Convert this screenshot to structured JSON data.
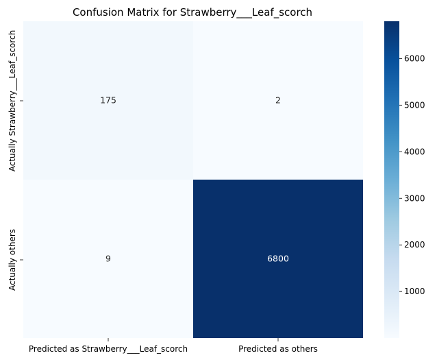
{
  "chart_data": {
    "type": "heatmap",
    "title": "Confusion Matrix for Strawberry___Leaf_scorch",
    "x_labels": [
      "Predicted as Strawberry___Leaf_scorch",
      "Predicted as others"
    ],
    "y_labels": [
      "Actually Strawberry___Leaf_scorch",
      "Actually others"
    ],
    "values": [
      [
        175,
        2
      ],
      [
        9,
        6800
      ]
    ],
    "colormap": "Blues",
    "colorbar": {
      "ticks": [
        1000,
        2000,
        3000,
        4000,
        5000,
        6000
      ],
      "range": [
        2,
        6800
      ]
    },
    "grid": false
  }
}
